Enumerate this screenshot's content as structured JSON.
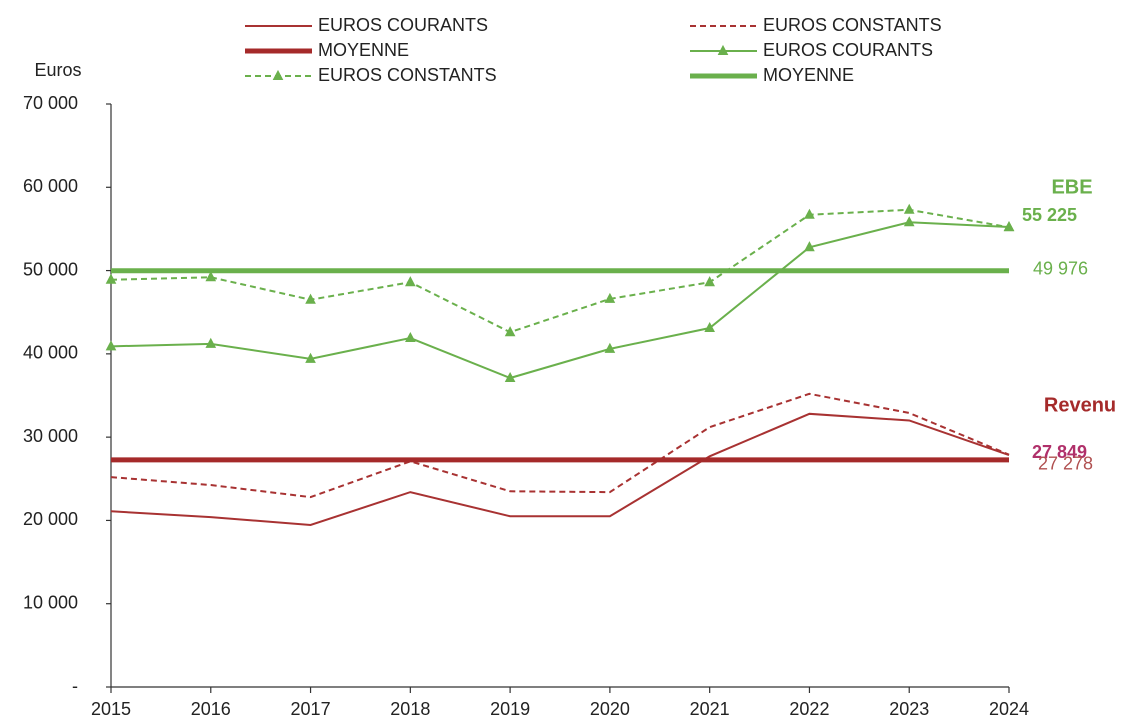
{
  "chart_data": {
    "type": "line",
    "y_label": "Euros",
    "categories": [
      "2015",
      "2016",
      "2017",
      "2018",
      "2019",
      "2020",
      "2021",
      "2022",
      "2023",
      "2024"
    ],
    "ylim": [
      0,
      70000
    ],
    "yticks": [
      {
        "value": 0,
        "label": "-"
      },
      {
        "value": 10000,
        "label": "10 000"
      },
      {
        "value": 20000,
        "label": "20 000"
      },
      {
        "value": 30000,
        "label": "30 000"
      },
      {
        "value": 40000,
        "label": "40 000"
      },
      {
        "value": 50000,
        "label": "50 000"
      },
      {
        "value": 60000,
        "label": "60 000"
      },
      {
        "value": 70000,
        "label": "70 000"
      }
    ],
    "groups": [
      {
        "name": "Revenu",
        "color": "#a52a2a"
      },
      {
        "name": "EBE",
        "color": "#6ab04c"
      }
    ],
    "series": [
      {
        "name": "EUROS COURANTS",
        "group": 0,
        "color": "#a83232",
        "style": "solid",
        "values": [
          21100,
          20400,
          19450,
          23400,
          20500,
          20500,
          27700,
          32800,
          32000,
          27849
        ],
        "value_labels": [
          null,
          null,
          null,
          null,
          null,
          null,
          null,
          null,
          null,
          "27 849"
        ]
      },
      {
        "name": "EUROS CONSTANTS",
        "group": 0,
        "color": "#a83232",
        "style": "dashed",
        "values": [
          25200,
          24250,
          22800,
          27100,
          23500,
          23400,
          31200,
          35200,
          32900,
          27900
        ]
      },
      {
        "name": "MOYENNE",
        "group": 0,
        "color": "#a52a2a",
        "style": "mean",
        "value": 27278,
        "value_label": "27 278"
      },
      {
        "name": "EUROS COURANTS",
        "group": 1,
        "color": "#6ab04c",
        "style": "solid",
        "marker": "triangle",
        "values": [
          40900,
          41200,
          39400,
          41900,
          37100,
          40600,
          43100,
          52800,
          55800,
          55225
        ],
        "value_labels": [
          null,
          null,
          null,
          null,
          null,
          null,
          null,
          null,
          null,
          "55 225"
        ]
      },
      {
        "name": "EUROS CONSTANTS",
        "group": 1,
        "color": "#6ab04c",
        "style": "dashed",
        "marker": "triangle",
        "values": [
          48900,
          49200,
          46500,
          48600,
          42600,
          46600,
          48600,
          56700,
          57300,
          55200
        ]
      },
      {
        "name": "MOYENNE",
        "group": 1,
        "color": "#6ab04c",
        "style": "mean",
        "value": 49976,
        "value_label": "49 976"
      }
    ]
  }
}
